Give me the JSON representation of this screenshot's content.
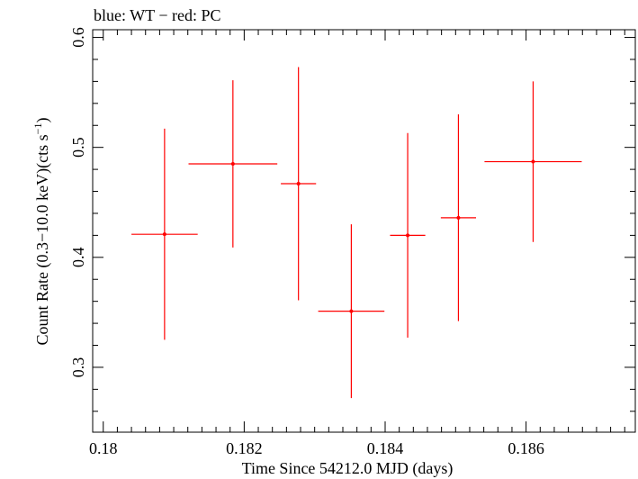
{
  "chart_data": {
    "type": "scatter",
    "title": "blue: WT − red: PC",
    "xlabel": "Time Since 54212.0 MJD (days)",
    "ylabel_main": "Count Rate (0.3−10.0 keV)(cts s",
    "ylabel_sup": "−1",
    "ylabel_close": ")",
    "xlim": [
      0.17985,
      0.18755
    ],
    "ylim": [
      0.241,
      0.607
    ],
    "x_ticks": [
      {
        "value": 0.18,
        "label": "0.18"
      },
      {
        "value": 0.182,
        "label": "0.182"
      },
      {
        "value": 0.184,
        "label": "0.184"
      },
      {
        "value": 0.186,
        "label": "0.186"
      }
    ],
    "y_ticks": [
      {
        "value": 0.3,
        "label": "0.3"
      },
      {
        "value": 0.4,
        "label": "0.4"
      },
      {
        "value": 0.5,
        "label": "0.5"
      },
      {
        "value": 0.6,
        "label": "0.6"
      }
    ],
    "series": [
      {
        "color": "#ff0000",
        "points": [
          {
            "x": 0.18087,
            "xerr": 0.00047,
            "y": 0.421,
            "yerr": 0.096
          },
          {
            "x": 0.18184,
            "xerr": 0.00063,
            "y": 0.485,
            "yerr": 0.076
          },
          {
            "x": 0.18277,
            "xerr": 0.00025,
            "y": 0.467,
            "yerr": 0.106
          },
          {
            "x": 0.18352,
            "xerr": 0.00047,
            "y": 0.351,
            "yerr": 0.079
          },
          {
            "x": 0.18432,
            "xerr": 0.00025,
            "y": 0.42,
            "yerr": 0.093
          },
          {
            "x": 0.18504,
            "xerr": 0.00025,
            "y": 0.436,
            "yerr": 0.094
          },
          {
            "x": 0.1861,
            "xerr": 0.00069,
            "y": 0.487,
            "yerr": 0.073
          }
        ]
      }
    ]
  }
}
